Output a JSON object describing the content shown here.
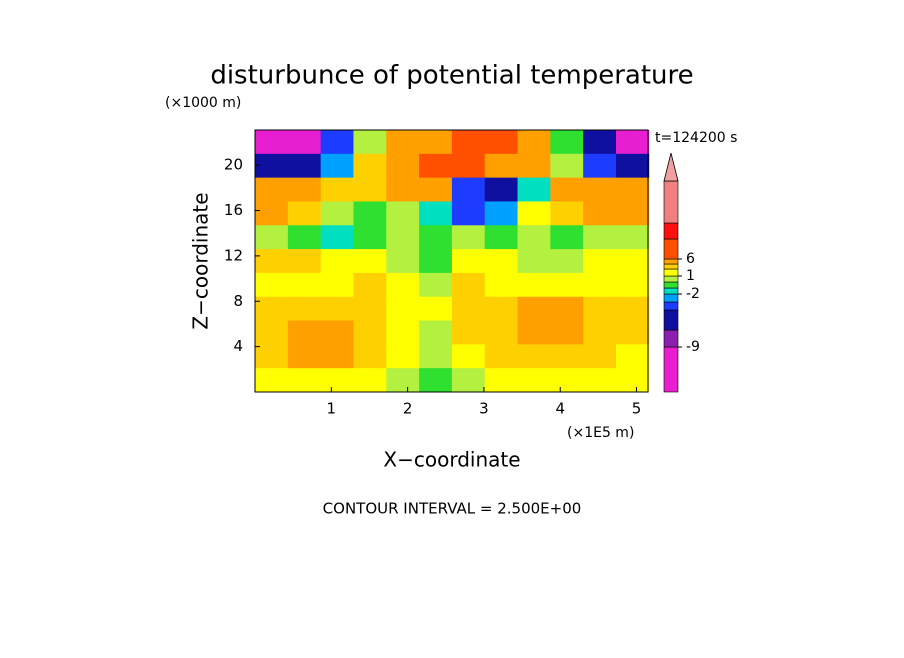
{
  "chart_data": {
    "type": "contour",
    "title": "disturbunce of potential temperature",
    "y_unit_label": "(×1000 m)",
    "x_unit_label": "(×1E5 m)",
    "time_label": "t=124200 s",
    "xlabel": "X−coordinate",
    "ylabel": "Z−coordinate",
    "footer": "CONTOUR INTERVAL = 2.500E+00",
    "xlim": [
      0,
      5.15
    ],
    "ylim": [
      0,
      23.1
    ],
    "xticks": [
      1,
      2,
      3,
      4,
      5
    ],
    "yticks": [
      4,
      8,
      12,
      16,
      20
    ],
    "field": {
      "x": [
        0.215,
        0.645,
        1.075,
        1.505,
        1.935,
        2.365,
        2.795,
        3.225,
        3.655,
        4.085,
        4.515,
        4.945
      ],
      "z": [
        22.05,
        19.95,
        17.85,
        15.75,
        13.65,
        11.55,
        9.45,
        7.35,
        5.25,
        3.15,
        1.05
      ],
      "values": [
        [
          -10,
          -10,
          -4,
          0,
          4,
          5,
          7,
          6,
          3,
          -1,
          -6,
          -10
        ],
        [
          -5,
          -6,
          -3,
          2,
          5,
          7,
          8,
          5,
          3,
          0,
          -4,
          -5
        ],
        [
          3,
          3,
          2,
          2,
          4,
          5,
          -4,
          -5,
          -2,
          3,
          3,
          3
        ],
        [
          3,
          2,
          0,
          -1,
          0,
          -2,
          -4,
          -3,
          1,
          2,
          3,
          3
        ],
        [
          0,
          -1,
          -2,
          -1,
          0,
          -1,
          0,
          -1,
          0,
          -1,
          0,
          0
        ],
        [
          2,
          2,
          1,
          1,
          0,
          -1,
          1,
          1,
          0,
          0,
          1,
          1
        ],
        [
          1.5,
          1.5,
          1.5,
          2,
          1,
          0.5,
          2,
          1.5,
          1.5,
          1.5,
          1.5,
          1.5
        ],
        [
          2,
          2.5,
          2.5,
          2,
          1.5,
          1,
          2,
          2.5,
          3,
          3,
          2.5,
          2
        ],
        [
          2.5,
          3.5,
          3.5,
          2.5,
          1.5,
          0.5,
          2,
          2.5,
          3,
          3,
          2.5,
          2
        ],
        [
          2,
          3,
          3,
          2,
          1,
          0,
          1.5,
          2,
          2,
          2,
          2,
          1.5
        ],
        [
          1,
          1,
          1,
          1,
          0.5,
          -1,
          0,
          1,
          1,
          1,
          1,
          1
        ]
      ]
    },
    "colorbar": {
      "bounds": [
        -15,
        -9,
        -6,
        -4,
        -3,
        -2,
        -1,
        0,
        1,
        2,
        3,
        6,
        9,
        12
      ],
      "colors": [
        "#e81fd0",
        "#8a1fb0",
        "#1010a0",
        "#1e3cff",
        "#00a0ff",
        "#00e0c0",
        "#30e030",
        "#b4f040",
        "#ffff00",
        "#ffd000",
        "#ffa000",
        "#ff5000",
        "#ff1010",
        "#f08080"
      ],
      "extend_color": "#f0a0a0",
      "ticks": [
        -9,
        -2,
        1,
        6
      ]
    }
  }
}
